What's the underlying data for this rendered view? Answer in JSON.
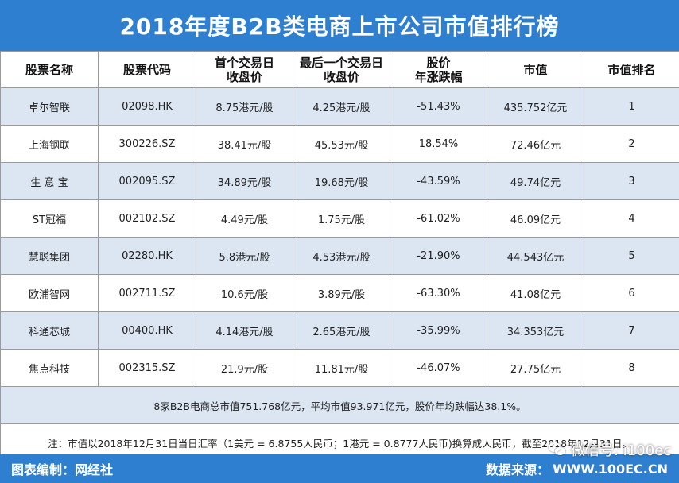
{
  "title": "2018年度B2B类电商上市公司市值排行榜",
  "headers": [
    [
      "股票名称"
    ],
    [
      "股票代码"
    ],
    [
      "首个交易日",
      "收盘价"
    ],
    [
      "最后一个交易日",
      "收盘价"
    ],
    [
      "股价",
      "年涨跌幅"
    ],
    [
      "市值"
    ],
    [
      "市值排名"
    ]
  ],
  "rows": [
    {
      "name": "卓尔智联",
      "code": "02098.HK",
      "first_close": "8.75港元/股",
      "last_close": "4.25港元/股",
      "change": "-51.43%",
      "market_cap": "435.752亿元",
      "rank": "1"
    },
    {
      "name": "上海钢联",
      "code": "300226.SZ",
      "first_close": "38.41元/股",
      "last_close": "45.53元/股",
      "change": "18.54%",
      "market_cap": "72.46亿元",
      "rank": "2"
    },
    {
      "name": "生 意 宝",
      "code": "002095.SZ",
      "first_close": "34.89元/股",
      "last_close": "19.68元/股",
      "change": "-43.59%",
      "market_cap": "49.74亿元",
      "rank": "3"
    },
    {
      "name": "ST冠福",
      "code": "002102.SZ",
      "first_close": "4.49元/股",
      "last_close": "1.75元/股",
      "change": "-61.02%",
      "market_cap": "46.09亿元",
      "rank": "4"
    },
    {
      "name": "慧聪集团",
      "code": "02280.HK",
      "first_close": "5.8港元/股",
      "last_close": "4.53港元/股",
      "change": "-21.90%",
      "market_cap": "44.543亿元",
      "rank": "5"
    },
    {
      "name": "欧浦智网",
      "code": "002711.SZ",
      "first_close": "10.6元/股",
      "last_close": "3.89元/股",
      "change": "-63.30%",
      "market_cap": "41.08亿元",
      "rank": "6"
    },
    {
      "name": "科通芯城",
      "code": "00400.HK",
      "first_close": "4.14港元/股",
      "last_close": "2.65港元/股",
      "change": "-35.99%",
      "market_cap": "34.353亿元",
      "rank": "7"
    },
    {
      "name": "焦点科技",
      "code": "002315.SZ",
      "first_close": "21.9元/股",
      "last_close": "11.81元/股",
      "change": "-46.07%",
      "market_cap": "27.75亿元",
      "rank": "8"
    }
  ],
  "summary": "8家B2B电商总市值751.768亿元，平均市值93.971亿元，股价年均跌幅达38.1%。",
  "note": "注：市值以2018年12月31日当日汇率（1美元 = 6.8755人民币；1港元 = 0.8777人民币)换算成人民币，截至2018年12月31日。",
  "footer": {
    "left": "图表编制：网经社",
    "right_label": "数据来源：",
    "right_site": "WWW.100EC.CN"
  },
  "watermark": {
    "icon": "wechat-icon",
    "text": "微信号: i100ec"
  },
  "colors": {
    "brand_blue": "#2f7fd0",
    "row_tint": "#dce6f2",
    "grid_line": "#9a9a9a"
  }
}
